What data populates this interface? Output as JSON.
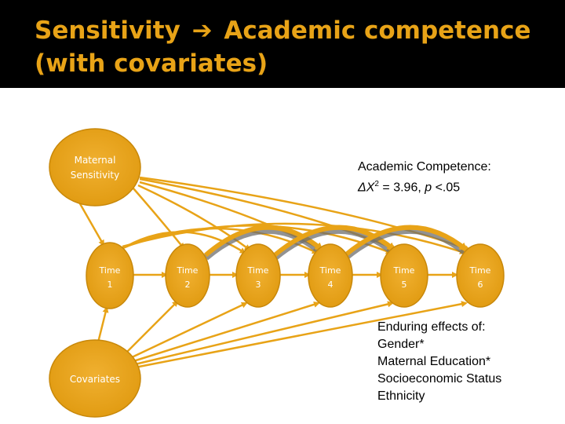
{
  "slide": {
    "title_part1": "Sensitivity",
    "title_arrow": "➔",
    "title_part2": "Academic competence (with covariates)"
  },
  "nodes": {
    "maternal": [
      "Maternal",
      "Sensitivity"
    ],
    "covariates": "Covariates",
    "times": [
      [
        "Time",
        "1"
      ],
      [
        "Time",
        "2"
      ],
      [
        "Time",
        "3"
      ],
      [
        "Time",
        "4"
      ],
      [
        "Time",
        "5"
      ],
      [
        "Time",
        "6"
      ]
    ]
  },
  "stat": {
    "line1": "Academic Competence:",
    "delta": "ΔX",
    "sup": "2",
    "eq": " = 3.96, ",
    "p": "p",
    "rest": " <.05"
  },
  "effects": {
    "heading": "Enduring effects of:",
    "items": [
      "Gender*",
      "Maternal Education*",
      "Socioeconomic Status",
      "Ethnicity"
    ]
  },
  "colors": {
    "header_bg": "#000000",
    "title": "#e8a317",
    "node_fill": "#e8a317",
    "node_edge": "#c8880a",
    "arrow": "#e8a317",
    "arc_shadow": "#6e6e6e"
  }
}
